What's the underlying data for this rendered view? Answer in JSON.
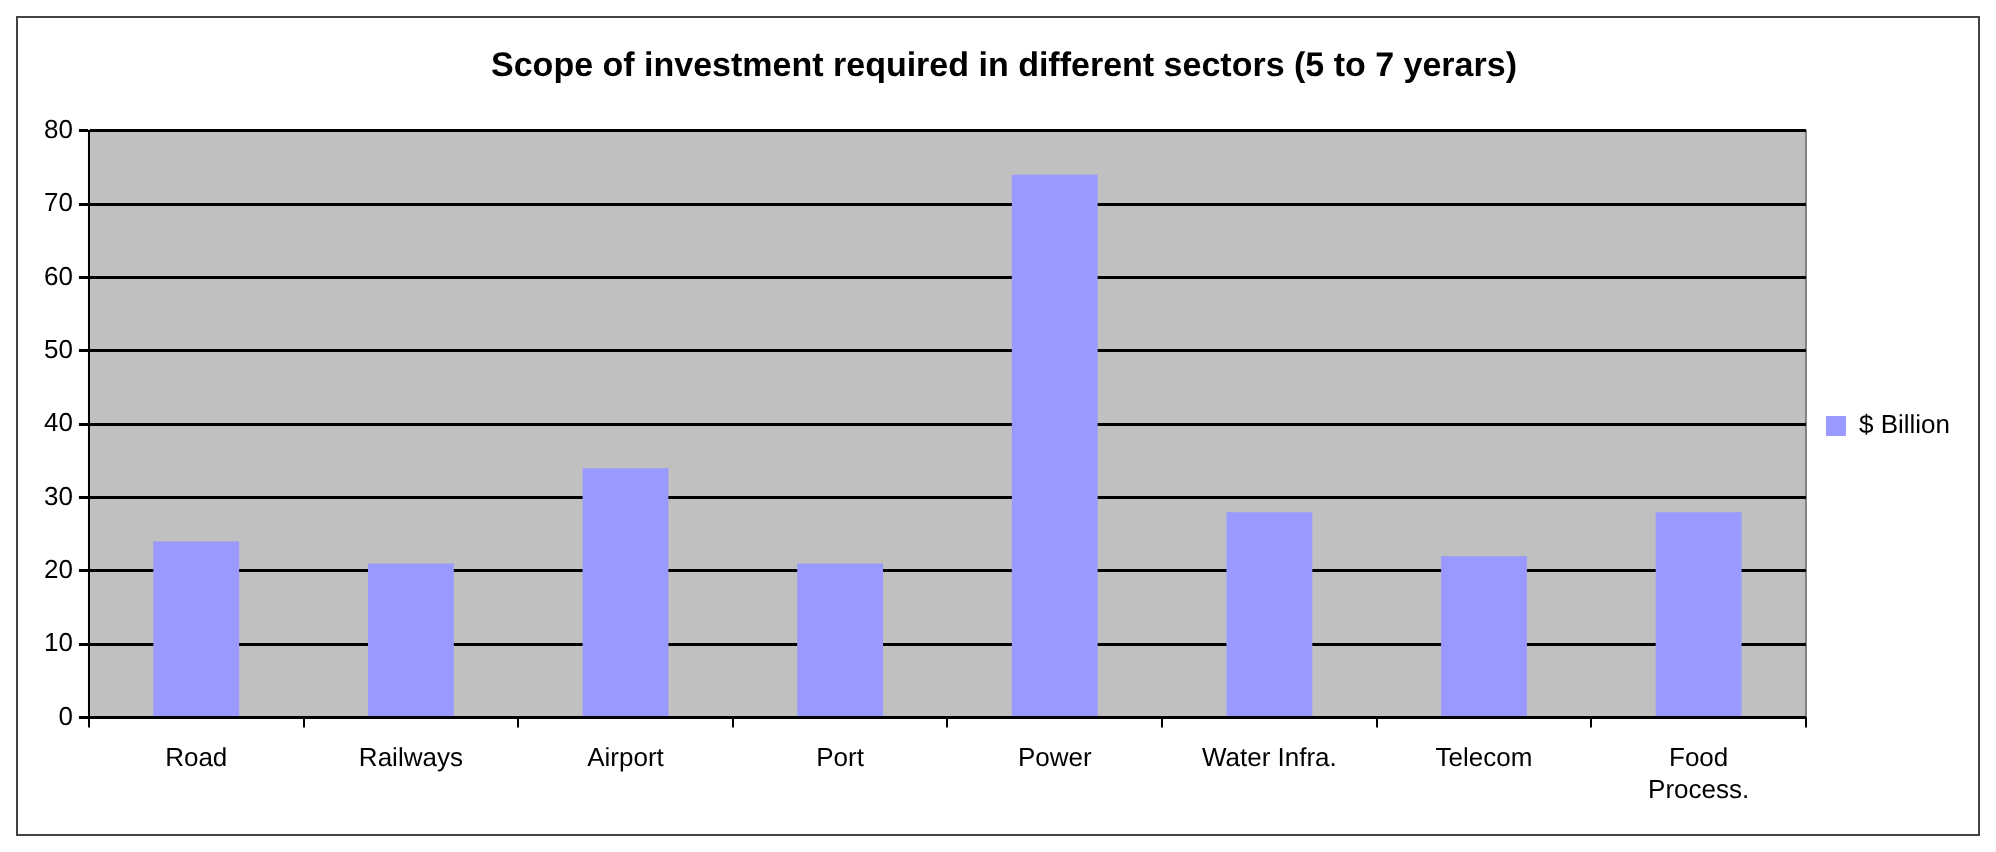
{
  "chart_data": {
    "type": "bar",
    "title": "Scope of investment required in different sectors (5 to 7 yerars)",
    "categories": [
      "Road",
      "Railways",
      "Airport",
      "Port",
      "Power",
      "Water Infra.",
      "Telecom",
      "Food Process."
    ],
    "series": [
      {
        "name": "$ Billion",
        "color": "#9999ff",
        "values": [
          24,
          21,
          34,
          21,
          74,
          28,
          22,
          28
        ]
      }
    ],
    "ylim": [
      0,
      80
    ],
    "yticks": [
      0,
      10,
      20,
      30,
      40,
      50,
      60,
      70,
      80
    ],
    "grid": "y",
    "legend": "right"
  }
}
